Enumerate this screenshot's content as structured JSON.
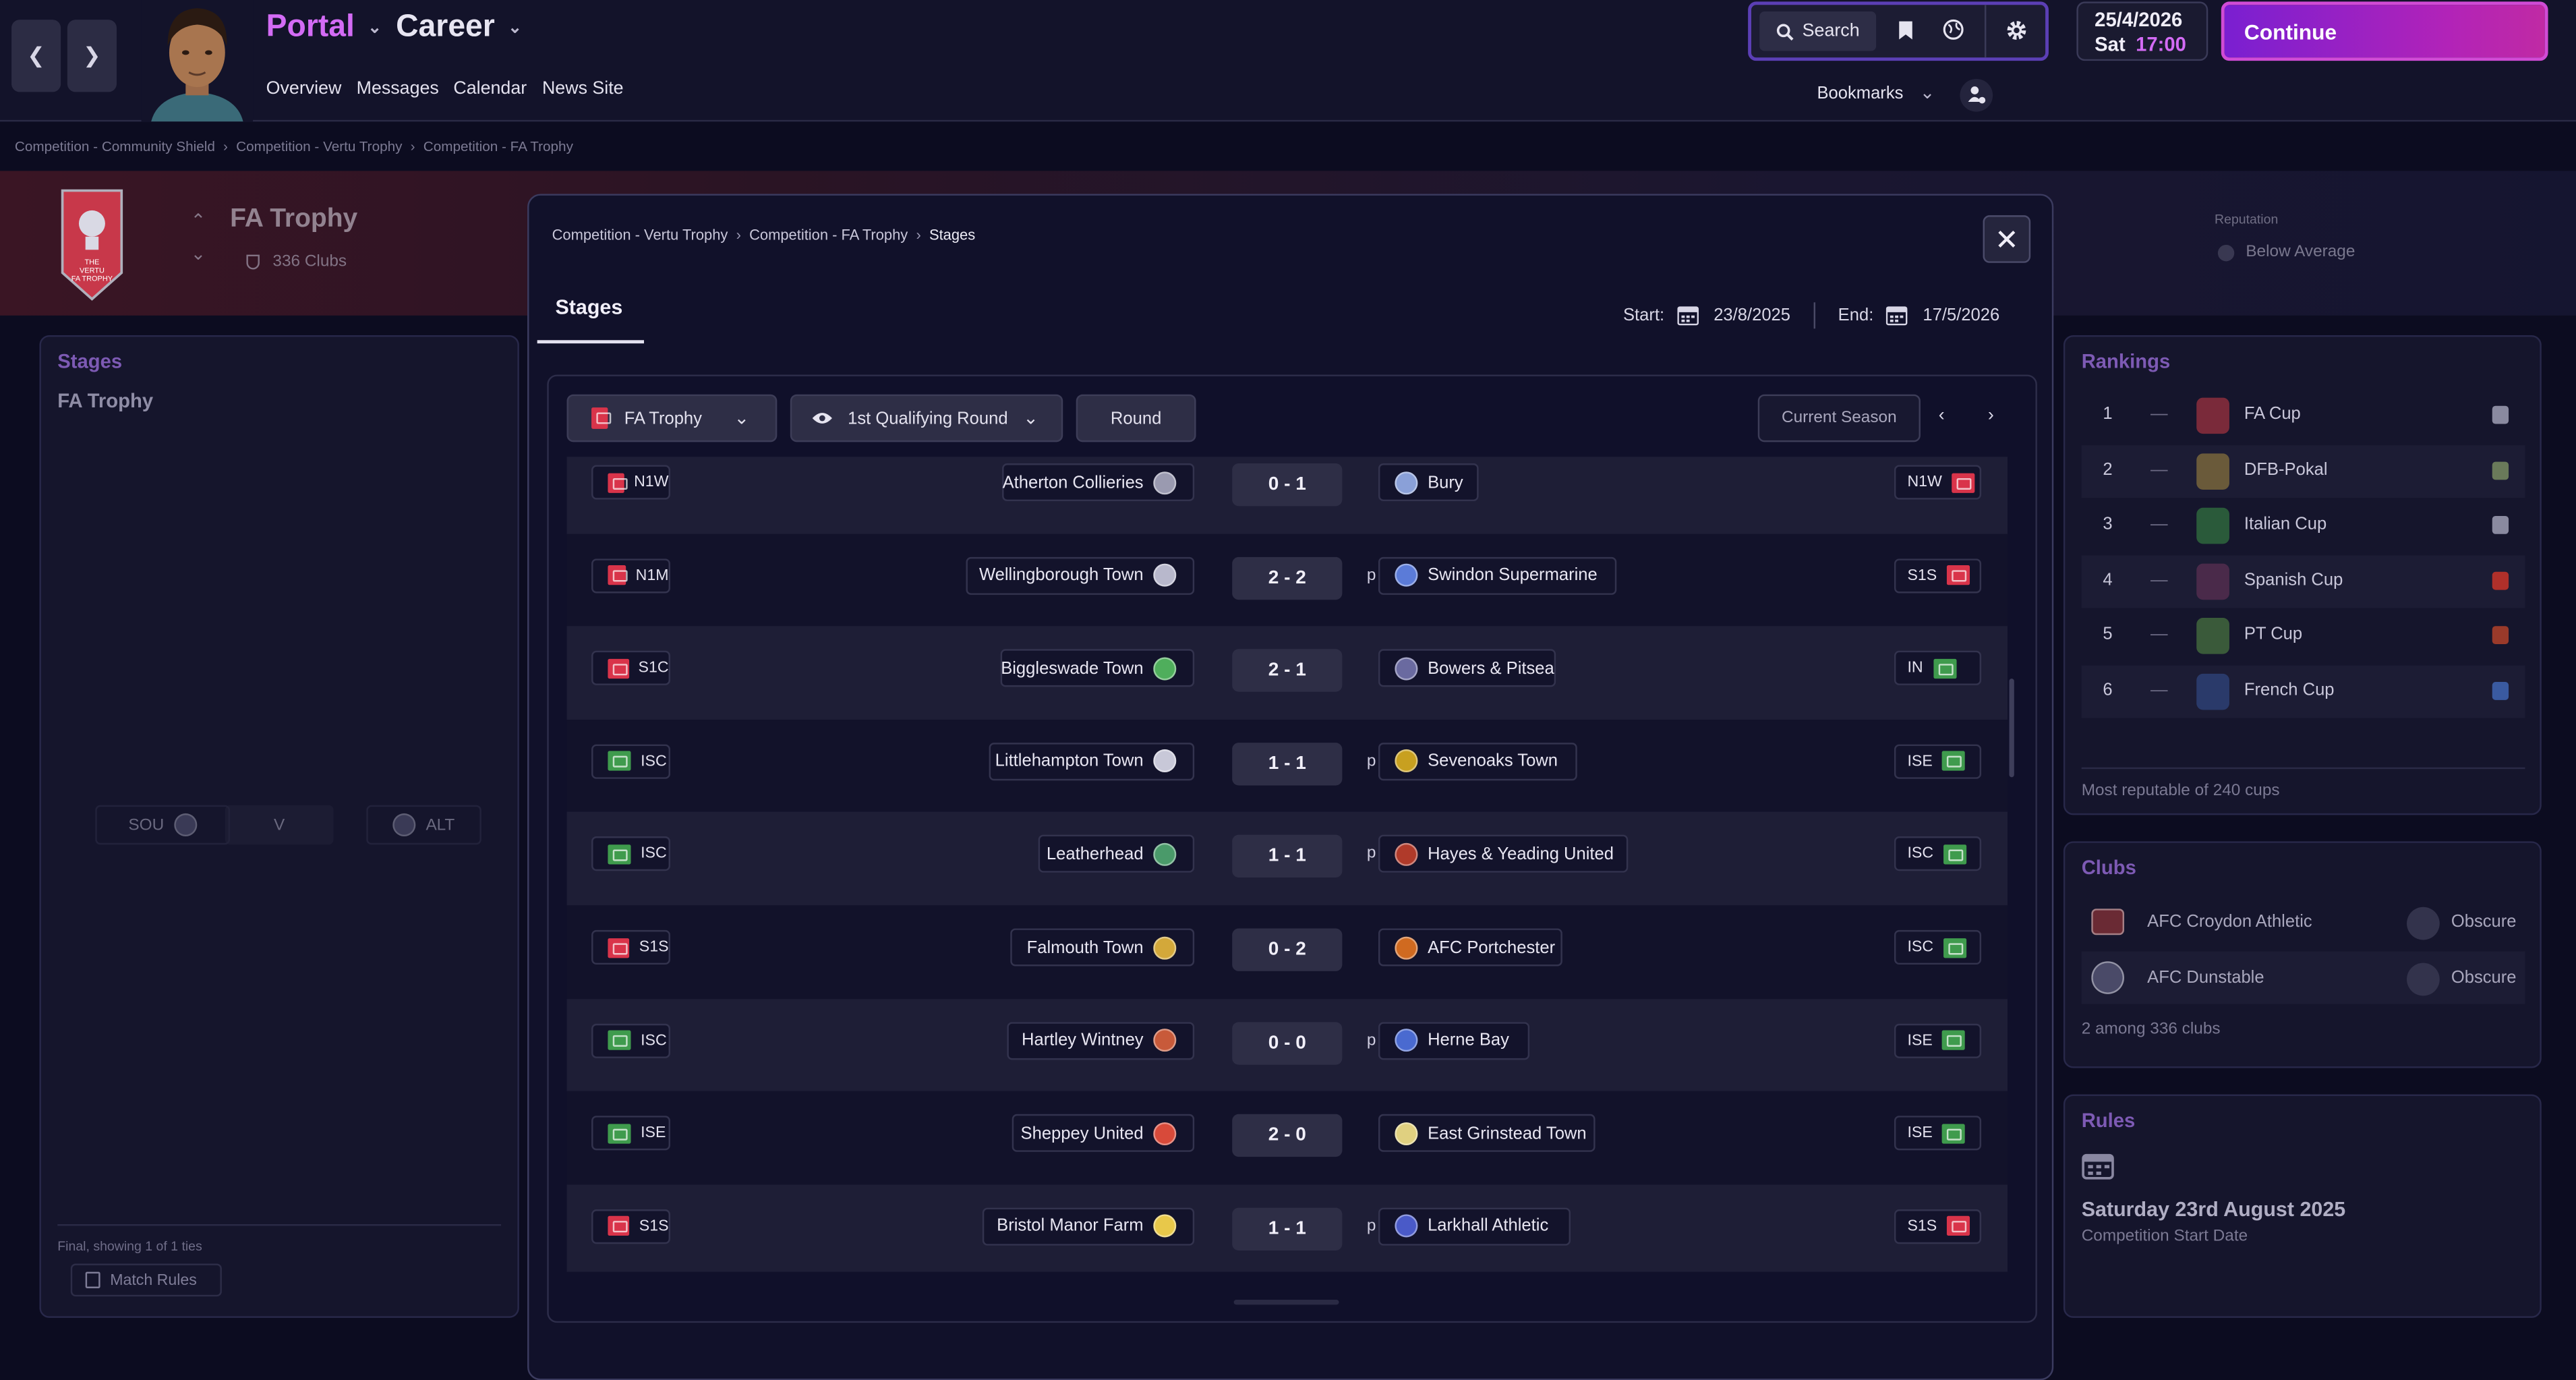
{
  "topbar": {
    "back_icon": "chevron-left-icon",
    "forward_icon": "chevron-right-icon",
    "portal": "Portal",
    "career": "Career",
    "links": [
      "Overview",
      "Messages",
      "Calendar",
      "News Site"
    ],
    "search_label": "Search",
    "bookmarks_label": "Bookmarks",
    "date": "25/4/2026",
    "day": "Sat",
    "time": "17:00",
    "continue_label": "Continue",
    "accent_color": "#d36bf5",
    "continue_gradient": [
      "#7a1fd1",
      "#c02aa4"
    ]
  },
  "page_breadcrumb": [
    "Competition - Community Shield",
    "Competition - Vertu Trophy",
    "Competition - FA Trophy"
  ],
  "competition": {
    "name": "FA Trophy",
    "clubs": "336 Clubs",
    "reputation_label": "Reputation",
    "reputation_value": "Below Average",
    "logo_text": "THE VERTU FA TROPHY"
  },
  "stages_panel": {
    "title": "Stages",
    "subtitle": "FA Trophy",
    "home": "SOU",
    "vs": "V",
    "away": "ALT",
    "footer_note": "Final, showing 1 of 1 ties",
    "match_rules_label": "Match Rules"
  },
  "rankings": {
    "title": "Rankings",
    "items": [
      {
        "rank": "1",
        "change": "—",
        "name": "FA Cup"
      },
      {
        "rank": "2",
        "change": "—",
        "name": "DFB-Pokal"
      },
      {
        "rank": "3",
        "change": "—",
        "name": "Italian Cup"
      },
      {
        "rank": "4",
        "change": "—",
        "name": "Spanish Cup"
      },
      {
        "rank": "5",
        "change": "—",
        "name": "PT Cup"
      },
      {
        "rank": "6",
        "change": "—",
        "name": "French Cup"
      }
    ],
    "footer": "Most reputable of 240 cups"
  },
  "clubs": {
    "title": "Clubs",
    "items": [
      {
        "name": "AFC Croydon Athletic",
        "status": "Obscure"
      },
      {
        "name": "AFC Dunstable",
        "status": "Obscure"
      }
    ],
    "footer": "2 among 336 clubs"
  },
  "rules": {
    "title": "Rules",
    "date": "Saturday 23rd August 2025",
    "caption": "Competition Start Date"
  },
  "modal": {
    "breadcrumb": [
      "Competition - Vertu Trophy",
      "Competition - FA Trophy",
      "Stages"
    ],
    "tab": "Stages",
    "start_label": "Start:",
    "start_date": "23/8/2025",
    "end_label": "End:",
    "end_date": "17/5/2026",
    "competition_select": "FA Trophy",
    "round_select": "1st Qualifying Round",
    "round_button": "Round",
    "season_button": "Current Season",
    "matches": [
      {
        "home_league": "N1W",
        "home_flag": "red",
        "home": "Atherton Collieries",
        "score": "0 - 1",
        "pens": "",
        "away": "Bury",
        "away_league": "N1W",
        "away_flag": "red"
      },
      {
        "home_league": "N1M",
        "home_flag": "red",
        "home": "Wellingborough Town",
        "score": "2 - 2",
        "pens": "p",
        "away": "Swindon Supermarine",
        "away_league": "S1S",
        "away_flag": "red"
      },
      {
        "home_league": "S1C",
        "home_flag": "red",
        "home": "Biggleswade Town",
        "score": "2 - 1",
        "pens": "",
        "away": "Bowers & Pitsea",
        "away_league": "IN",
        "away_flag": "green"
      },
      {
        "home_league": "ISC",
        "home_flag": "green",
        "home": "Littlehampton Town",
        "score": "1 - 1",
        "pens": "p",
        "away": "Sevenoaks Town",
        "away_league": "ISE",
        "away_flag": "green"
      },
      {
        "home_league": "ISC",
        "home_flag": "green",
        "home": "Leatherhead",
        "score": "1 - 1",
        "pens": "p",
        "away": "Hayes & Yeading United",
        "away_league": "ISC",
        "away_flag": "green"
      },
      {
        "home_league": "S1S",
        "home_flag": "red",
        "home": "Falmouth Town",
        "score": "0 - 2",
        "pens": "",
        "away": "AFC Portchester",
        "away_league": "ISC",
        "away_flag": "green"
      },
      {
        "home_league": "ISC",
        "home_flag": "green",
        "home": "Hartley Wintney",
        "score": "0 - 0",
        "pens": "p",
        "away": "Herne Bay",
        "away_league": "ISE",
        "away_flag": "green"
      },
      {
        "home_league": "ISE",
        "home_flag": "green",
        "home": "Sheppey United",
        "score": "2 - 0",
        "pens": "",
        "away": "East Grinstead Town",
        "away_league": "ISE",
        "away_flag": "green"
      },
      {
        "home_league": "S1S",
        "home_flag": "red",
        "home": "Bristol Manor Farm",
        "score": "1 - 1",
        "pens": "p",
        "away": "Larkhall Athletic",
        "away_league": "S1S",
        "away_flag": "red"
      }
    ]
  }
}
